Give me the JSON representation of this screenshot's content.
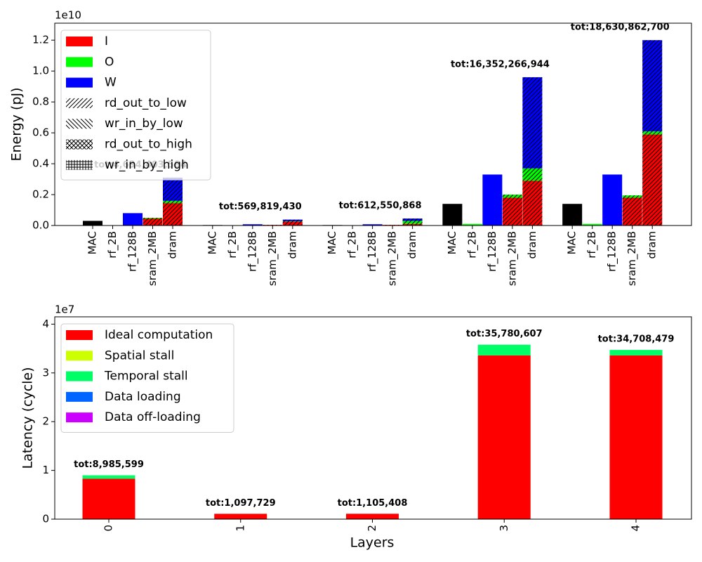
{
  "chart_data": [
    {
      "type": "grouped-stacked-bar",
      "offset_label": "1e10",
      "ylabel": "Energy (pJ)",
      "ylim": [
        0,
        1.31
      ],
      "yticks": [
        {
          "value": 0,
          "label": "0.0"
        },
        {
          "value": 0.2,
          "label": "0.2"
        },
        {
          "value": 0.4,
          "label": "0.4"
        },
        {
          "value": 0.6,
          "label": "0.6"
        },
        {
          "value": 0.8,
          "label": "0.8"
        },
        {
          "value": 1.0,
          "label": "1.0"
        },
        {
          "value": 1.2,
          "label": "1.2"
        }
      ],
      "bar_labels": [
        "MAC",
        "rf_2B",
        "rf_128B",
        "sram_2MB",
        "dram"
      ],
      "mac": {
        "color": "#000000",
        "values": [
          0.03,
          0.003,
          0.003,
          0.14,
          0.14
        ]
      },
      "series": [
        {
          "name": "I",
          "color": "#ff0000",
          "values": [
            [
              0,
              0,
              0.045,
              0.145
            ],
            [
              0,
              0,
              0.004,
              0.025
            ],
            [
              0,
              0,
              0.004,
              0.01
            ],
            [
              0,
              0,
              0.18,
              0.29
            ],
            [
              0,
              0,
              0.18,
              0.59
            ]
          ]
        },
        {
          "name": "O",
          "color": "#00ff00",
          "values": [
            [
              0,
              0,
              0.005,
              0.015
            ],
            [
              0.0005,
              0,
              0,
              0.003
            ],
            [
              0.0005,
              0,
              0,
              0.02
            ],
            [
              0.01,
              0,
              0.02,
              0.08
            ],
            [
              0.01,
              0,
              0.015,
              0.02
            ]
          ]
        },
        {
          "name": "W",
          "color": "#0000ff",
          "values": [
            [
              0,
              0.08,
              0,
              0.15
            ],
            [
              0,
              0.008,
              0,
              0.01
            ],
            [
              0,
              0.008,
              0,
              0.015
            ],
            [
              0,
              0.33,
              0,
              0.59
            ],
            [
              0,
              0.33,
              0,
              0.59
            ]
          ]
        }
      ],
      "hatch_legend": [
        {
          "name": "rd_out_to_low",
          "pattern": "fwd"
        },
        {
          "name": "wr_in_by_low",
          "pattern": "back"
        },
        {
          "name": "rd_out_to_high",
          "pattern": "cross"
        },
        {
          "name": "wr_in_by_high",
          "pattern": "plus"
        }
      ],
      "totals": [
        "tot:4,634,403,584",
        "tot:569,819,430",
        "tot:612,550,868",
        "tot:16,352,266,944",
        "tot:18,630,862,700"
      ],
      "legend": "upper left"
    },
    {
      "type": "stacked-bar",
      "offset_label": "1e7",
      "xlabel": "Layers",
      "ylabel": "Latency (cycle)",
      "categories": [
        "0",
        "1",
        "2",
        "3",
        "4"
      ],
      "ylim": [
        0,
        4.15
      ],
      "yticks": [
        0,
        1,
        2,
        3,
        4
      ],
      "series": [
        {
          "name": "Ideal computation",
          "color": "#ff0000",
          "values": [
            0.83,
            0.1098,
            0.1105,
            3.36,
            3.36
          ]
        },
        {
          "name": "Spatial stall",
          "color": "#ccff00",
          "values": [
            0,
            0,
            0,
            0,
            0
          ]
        },
        {
          "name": "Temporal stall",
          "color": "#00ff66",
          "values": [
            0.0686,
            0,
            0,
            0.218,
            0.1108
          ]
        },
        {
          "name": "Data loading",
          "color": "#0066ff",
          "values": [
            0,
            0,
            0,
            0,
            0
          ]
        },
        {
          "name": "Data off-loading",
          "color": "#cc00ff",
          "values": [
            0,
            0,
            0,
            0,
            0
          ]
        }
      ],
      "totals": [
        "tot:8,985,599",
        "tot:1,097,729",
        "tot:1,105,408",
        "tot:35,780,607",
        "tot:34,708,479"
      ],
      "legend": "upper left"
    }
  ]
}
